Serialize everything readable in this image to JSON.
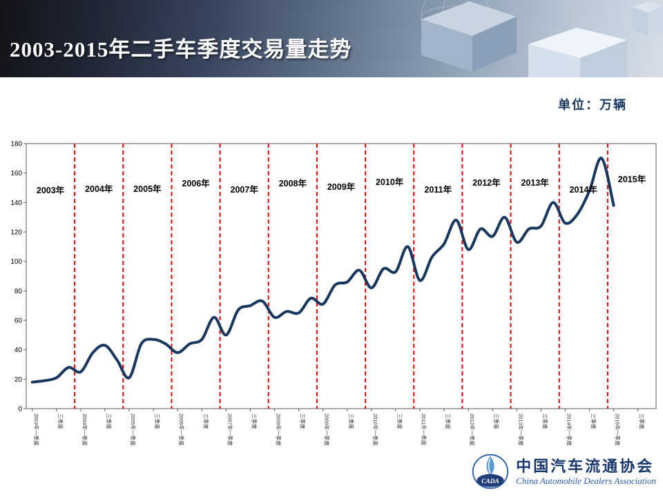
{
  "slide": {
    "title": "2003-2015年二手车季度交易量走势",
    "unit_label": "单位：万辆"
  },
  "footer": {
    "org_cn": "中国汽车流通协会",
    "org_en": "China Automobile Dealers Association",
    "logo_text": "CADA"
  },
  "chart_data": {
    "type": "line",
    "title": "2003-2015年二手车季度交易量走势",
    "unit": "万辆",
    "frequency": "quarterly",
    "x_start": "2003Q1",
    "x_end": "2015Q1",
    "values": [
      18,
      19,
      21,
      28,
      25,
      38,
      43,
      33,
      21,
      44,
      47,
      44,
      38,
      44,
      47,
      62,
      50,
      67,
      70,
      73,
      62,
      66,
      65,
      75,
      71,
      84,
      86,
      94,
      82,
      95,
      93,
      110,
      87,
      103,
      112,
      128,
      108,
      122,
      117,
      130,
      113,
      122,
      124,
      140,
      126,
      132,
      148,
      170,
      138
    ],
    "year_labels": [
      "2003年",
      "2004年",
      "2005年",
      "2006年",
      "2007年",
      "2008年",
      "2009年",
      "2010年",
      "2011年",
      "2012年",
      "2013年",
      "2014年",
      "2015年"
    ],
    "x_tick_labels": [
      "2003年一季度",
      "三季度",
      "2004年一季度",
      "三季度",
      "2005年一季度",
      "三季度",
      "2006年一季度",
      "三季度",
      "2007年一季度",
      "三季度",
      "2008年一季度",
      "三季度",
      "2009年一季度",
      "三季度",
      "2010年一季度",
      "三季度",
      "2011年一季度",
      "三季度",
      "2012年一季度",
      "三季度",
      "2013年一季度",
      "三季度",
      "2014年一季度",
      "三季度",
      "2015年一季度",
      "三季度"
    ],
    "yticks": [
      0,
      20,
      40,
      60,
      80,
      100,
      120,
      140,
      160,
      180
    ],
    "ylim": [
      0,
      180
    ],
    "x_slots": 52,
    "grid": false,
    "legend": "none",
    "line_color": "#17375E",
    "year_divider_color": "#E60000",
    "axis_color": "#595959"
  }
}
